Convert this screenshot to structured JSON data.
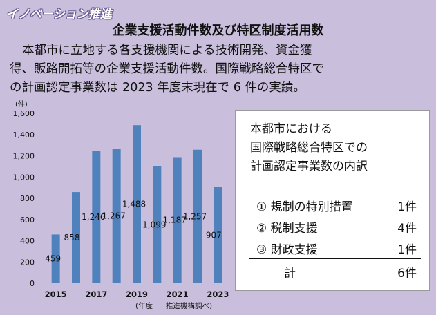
{
  "section_label": "イノベーション推進",
  "headline": "企業支援活動件数及び特区制度活用数",
  "description_lines": [
    "本都市に立地する各支援機関による技術開発、資金獲",
    "得、販路開拓等の企業支援活動件数。国際戦略総合特区で",
    "の計画認定事業数は 2023 年度末現在で 6 件の実績。"
  ],
  "chart_data": {
    "type": "bar",
    "x": [
      2015,
      2016,
      2017,
      2018,
      2019,
      2020,
      2021,
      2022,
      2023
    ],
    "values": [
      459,
      858,
      1246,
      1267,
      1488,
      1099,
      1187,
      1257,
      907
    ],
    "data_labels": [
      "459",
      "858",
      "1,246",
      "1,267",
      "1,488",
      "1,099",
      "1,187",
      "1,257",
      "907"
    ],
    "x_tick_labels": [
      "2015",
      "2017",
      "2019",
      "2021",
      "2023"
    ],
    "y_tick_labels": [
      "0",
      "200",
      "400",
      "600",
      "800",
      "1,000",
      "1,200",
      "1,400",
      "1,600"
    ],
    "ylim": [
      0,
      1600
    ],
    "y_unit": "(件)",
    "x_unit": "(年度",
    "source_note": "推進機構調べ)",
    "bar_color": "#4f81bd",
    "grid": false
  },
  "breakdown": {
    "title_lines": [
      "本都市における",
      "国際戦略総合特区での",
      "計画認定事業数の内訳"
    ],
    "items": [
      {
        "label": "① 規制の特別措置",
        "count": "1件"
      },
      {
        "label": "② 税制支援",
        "count": "4件"
      },
      {
        "label": "③ 財政支援",
        "count": "1件"
      }
    ],
    "total_label": "計",
    "total_count": "6件"
  }
}
